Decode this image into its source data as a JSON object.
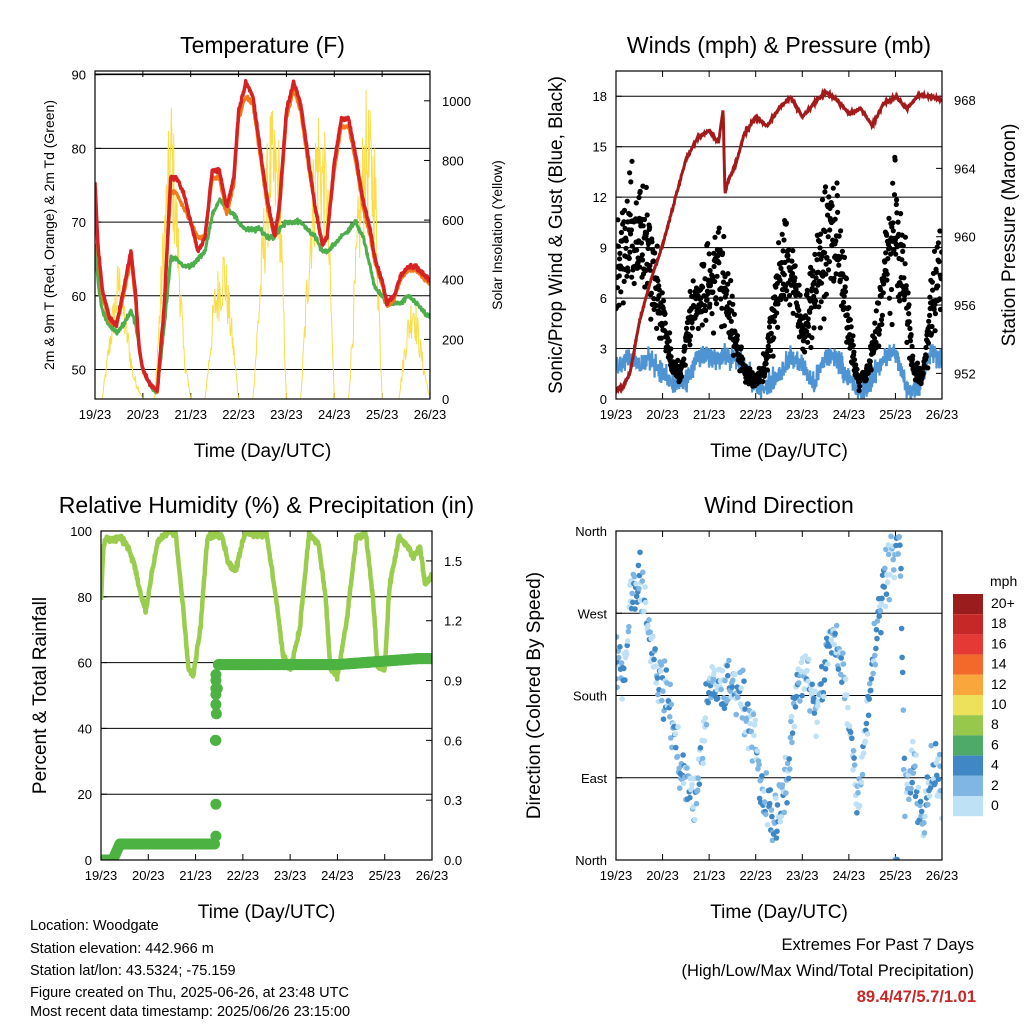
{
  "colors": {
    "temp_2m": "#d62222",
    "temp_9m": "#f07b1f",
    "dewpoint": "#4cae4c",
    "solar": "#f9dd4a",
    "wind": "#4f94d2",
    "gust": "#000000",
    "pressure": "#a31a1a",
    "rh": "#9acd4e",
    "rain": "#4cb342",
    "extremes": "#c62828"
  },
  "info": {
    "location": "Location: Woodgate",
    "elevation": "Station elevation: 442.966 m",
    "latlon": "Station lat/lon: 43.5324; -75.159",
    "created": "Figure created on Thu, 2025-06-26, at 23:48 UTC",
    "recent": "Most recent data timestamp: 2025/06/26 23:15:00"
  },
  "extremes": {
    "title": "Extremes For Past 7 Days",
    "subtitle": "(High/Low/Max Wind/Total Precipitation)",
    "values": "89.4/47/5.7/1.01"
  },
  "chart_data": [
    {
      "id": "temperature",
      "type": "line",
      "title": "Temperature (F)",
      "xlabel": "Time (Day/UTC)",
      "ylabel": "2m & 9m T (Red, Orange) & 2m Td (Green)",
      "y2label": "Solar Insolation (Yellow)",
      "xticks": [
        "19/23",
        "20/23",
        "21/23",
        "22/23",
        "23/23",
        "24/23",
        "25/23",
        "26/23"
      ],
      "xlim": [
        0,
        7
      ],
      "ylim": [
        46,
        90.5
      ],
      "yticks": [
        50,
        60,
        70,
        80,
        90
      ],
      "y2lim": [
        0,
        1100
      ],
      "y2ticks": [
        0,
        200,
        400,
        600,
        800,
        1000
      ],
      "grid": "horizontal",
      "series": [
        {
          "key": "temp_2m",
          "axis": "left",
          "x": [
            0,
            0.06,
            0.15,
            0.3,
            0.45,
            0.6,
            0.75,
            0.85,
            0.92,
            1.0,
            1.15,
            1.3,
            1.45,
            1.58,
            1.7,
            1.85,
            2.0,
            2.15,
            2.3,
            2.45,
            2.6,
            2.75,
            2.9,
            3.0,
            3.15,
            3.3,
            3.45,
            3.6,
            3.75,
            3.85,
            4.0,
            4.15,
            4.3,
            4.45,
            4.6,
            4.75,
            4.85,
            5.0,
            5.15,
            5.3,
            5.45,
            5.6,
            5.75,
            5.85,
            6.0,
            6.1,
            6.25,
            6.4,
            6.55,
            6.7,
            6.85,
            7.0
          ],
          "values": [
            75.5,
            67,
            61,
            57,
            56,
            61,
            66,
            60,
            53,
            50,
            48,
            47,
            59,
            76,
            76,
            74,
            70,
            66,
            68,
            77,
            77,
            72,
            76,
            85,
            89,
            87,
            80,
            73,
            68,
            72,
            85,
            89,
            86,
            79,
            72,
            67,
            68,
            78,
            84,
            84,
            79,
            73,
            69,
            65,
            62,
            59,
            60,
            63,
            64,
            64,
            63,
            62
          ]
        },
        {
          "key": "temp_9m",
          "axis": "left",
          "x": [
            0,
            0.06,
            0.15,
            0.3,
            0.45,
            0.6,
            0.75,
            0.85,
            0.92,
            1.0,
            1.15,
            1.3,
            1.45,
            1.58,
            1.7,
            1.85,
            2.0,
            2.15,
            2.3,
            2.45,
            2.6,
            2.75,
            2.9,
            3.0,
            3.15,
            3.3,
            3.45,
            3.6,
            3.75,
            3.85,
            4.0,
            4.15,
            4.3,
            4.45,
            4.6,
            4.75,
            4.85,
            5.0,
            5.15,
            5.3,
            5.45,
            5.6,
            5.75,
            5.85,
            6.0,
            6.1,
            6.25,
            6.4,
            6.55,
            6.7,
            6.85,
            7.0
          ],
          "values": [
            74.5,
            66,
            60,
            56.5,
            56,
            60,
            65,
            59,
            53,
            50,
            48,
            47,
            59,
            74,
            74,
            72,
            70,
            68,
            68,
            76,
            76,
            71,
            75,
            84,
            87,
            86,
            79,
            72,
            68,
            71,
            84,
            88,
            85,
            78,
            72,
            67,
            68,
            77,
            83,
            83,
            78,
            72,
            68,
            64.5,
            61.5,
            58.5,
            59.5,
            62.5,
            63.5,
            63.5,
            62.5,
            61.5
          ]
        },
        {
          "key": "dewpoint",
          "axis": "left",
          "x": [
            0,
            0.06,
            0.15,
            0.3,
            0.45,
            0.6,
            0.75,
            0.85,
            0.92,
            1.0,
            1.15,
            1.3,
            1.45,
            1.58,
            1.7,
            1.85,
            2.0,
            2.15,
            2.3,
            2.45,
            2.6,
            2.75,
            2.9,
            3.0,
            3.15,
            3.3,
            3.45,
            3.6,
            3.75,
            3.85,
            4.0,
            4.15,
            4.3,
            4.45,
            4.6,
            4.75,
            4.85,
            5.0,
            5.15,
            5.3,
            5.45,
            5.6,
            5.75,
            5.85,
            6.0,
            6.1,
            6.25,
            6.4,
            6.55,
            6.7,
            6.85,
            7.0
          ],
          "values": [
            67,
            62,
            58,
            56,
            55,
            56,
            58,
            56,
            53,
            50,
            48,
            47,
            56,
            65,
            65,
            64,
            64,
            65,
            66,
            71,
            73,
            72,
            71,
            70,
            69,
            69,
            69,
            68,
            68,
            69,
            70,
            70,
            70,
            69,
            68,
            66,
            66,
            67,
            68,
            69,
            70,
            68,
            64,
            61,
            60,
            59,
            59,
            59,
            60,
            59,
            58,
            57
          ]
        },
        {
          "key": "solar",
          "axis": "right",
          "x": [
            0,
            0.15,
            0.35,
            0.5,
            0.65,
            0.8,
            1.0,
            1.25,
            1.45,
            1.6,
            1.75,
            1.85,
            2.0,
            2.3,
            2.5,
            2.7,
            2.9,
            3.0,
            3.3,
            3.5,
            3.65,
            3.85,
            4.0,
            4.3,
            4.5,
            4.65,
            4.85,
            5.0,
            5.3,
            5.5,
            5.65,
            5.85,
            6.0,
            6.35,
            6.5,
            6.65,
            6.85,
            7.0
          ],
          "values": [
            0,
            0,
            300,
            500,
            300,
            100,
            0,
            0,
            700,
            1050,
            600,
            200,
            0,
            0,
            400,
            550,
            200,
            0,
            0,
            600,
            1000,
            900,
            0,
            0,
            700,
            1050,
            850,
            0,
            0,
            700,
            1050,
            900,
            0,
            0,
            250,
            400,
            150,
            0
          ]
        }
      ]
    },
    {
      "id": "winds",
      "type": "scatter",
      "title": "Winds (mph) & Pressure (mb)",
      "xlabel": "Time (Day/UTC)",
      "ylabel": "Sonic/Prop Wind & Gust (Blue, Black)",
      "y2label": "Station Pressure (Maroon)",
      "xticks": [
        "19/23",
        "20/23",
        "21/23",
        "22/23",
        "23/23",
        "24/23",
        "25/23",
        "26/23"
      ],
      "xlim": [
        0,
        7
      ],
      "ylim": [
        0,
        19.5
      ],
      "yticks": [
        0,
        3,
        6,
        9,
        12,
        15,
        18
      ],
      "y2lim": [
        950.5,
        969.7
      ],
      "y2ticks": [
        952,
        956,
        960,
        964,
        968
      ],
      "grid": "horizontal",
      "series": [
        {
          "key": "wind",
          "axis": "left",
          "x": [
            0,
            0.25,
            0.5,
            0.75,
            1.0,
            1.25,
            1.5,
            1.75,
            2.0,
            2.25,
            2.5,
            2.75,
            3.0,
            3.25,
            3.5,
            3.75,
            4.0,
            4.25,
            4.5,
            4.75,
            5.0,
            5.25,
            5.5,
            5.75,
            6.0,
            6.25,
            6.5,
            6.75,
            7.0
          ],
          "values": [
            2,
            2.5,
            2,
            2.5,
            1.5,
            0.8,
            1.0,
            2.5,
            2.5,
            2.5,
            2.5,
            2.0,
            0.8,
            0.8,
            1.5,
            2.5,
            2.0,
            0.8,
            2.5,
            2.5,
            1.2,
            0.3,
            1.2,
            2.5,
            2.8,
            0.5,
            0.8,
            2.8,
            2.5
          ]
        },
        {
          "key": "gust",
          "axis": "left",
          "x": [
            0,
            0.2,
            0.4,
            0.6,
            0.8,
            1.0,
            1.2,
            1.4,
            1.6,
            1.8,
            2.0,
            2.2,
            2.4,
            2.6,
            2.8,
            3.0,
            3.2,
            3.4,
            3.6,
            3.8,
            4.0,
            4.2,
            4.4,
            4.6,
            4.8,
            5.0,
            5.2,
            5.4,
            5.6,
            5.8,
            6.0,
            6.2,
            6.4,
            6.6,
            6.8,
            7.0
          ],
          "values": [
            7,
            9,
            10,
            9,
            8,
            5,
            2,
            1.5,
            5,
            6,
            7,
            8,
            6,
            3,
            1.5,
            1,
            2,
            5,
            9,
            7,
            4,
            6,
            8,
            10,
            9,
            4,
            1,
            1.5,
            4,
            8,
            10,
            7,
            1.5,
            1.5,
            6,
            8
          ]
        },
        {
          "key": "pressure",
          "axis": "right",
          "x": [
            0,
            0.15,
            0.3,
            0.5,
            0.75,
            1.0,
            1.25,
            1.5,
            1.75,
            2.0,
            2.2,
            2.3,
            2.34,
            2.4,
            2.5,
            2.6,
            2.75,
            3.0,
            3.25,
            3.5,
            3.75,
            4.0,
            4.25,
            4.5,
            4.75,
            5.0,
            5.25,
            5.5,
            5.75,
            6.0,
            6.25,
            6.5,
            6.75,
            7.0
          ],
          "values": [
            951,
            951.2,
            952,
            955,
            957.5,
            959.5,
            962,
            964.5,
            965.8,
            966.2,
            965.5,
            967.5,
            962.5,
            963.2,
            963.8,
            964.5,
            966,
            967,
            966.5,
            967.5,
            968.2,
            967,
            967.8,
            968.5,
            968,
            967.2,
            967.5,
            966.5,
            967.8,
            968.2,
            967.5,
            968.3,
            968.2,
            968
          ]
        }
      ]
    },
    {
      "id": "humidity",
      "type": "line",
      "title": "Relative Humidity (%) & Precipitation (in)",
      "xlabel": "Time (Day/UTC)",
      "ylabel": "Percent & Total Rainfall",
      "xticks": [
        "19/23",
        "20/23",
        "21/23",
        "22/23",
        "23/23",
        "24/23",
        "25/23",
        "26/23"
      ],
      "xlim": [
        0,
        7
      ],
      "ylim": [
        0,
        100
      ],
      "yticks": [
        0,
        20,
        40,
        60,
        80,
        100
      ],
      "y2lim": [
        0,
        1.65
      ],
      "y2ticks": [
        "0.0",
        "0.3",
        "0.6",
        "0.9",
        "1.2",
        "1.5"
      ],
      "grid": "horizontal",
      "series": [
        {
          "key": "rh",
          "axis": "left",
          "x": [
            0,
            0.05,
            0.1,
            0.2,
            0.4,
            0.55,
            0.7,
            0.85,
            0.95,
            1.05,
            1.2,
            1.45,
            1.58,
            1.75,
            1.85,
            1.95,
            2.1,
            2.25,
            2.4,
            2.55,
            2.7,
            2.85,
            2.95,
            3.05,
            3.3,
            3.5,
            3.7,
            3.85,
            4.0,
            4.2,
            4.4,
            4.6,
            4.75,
            4.85,
            5.0,
            5.2,
            5.4,
            5.6,
            5.75,
            5.85,
            6.0,
            6.1,
            6.3,
            6.5,
            6.6,
            6.75,
            6.85,
            7.0
          ],
          "values": [
            79,
            95,
            98,
            97,
            98,
            96,
            90,
            80,
            76,
            85,
            97,
            100,
            99,
            75,
            58,
            56,
            70,
            98,
            99,
            99,
            90,
            88,
            94,
            100,
            99,
            99,
            80,
            62,
            58,
            70,
            99,
            96,
            80,
            58,
            56,
            73,
            98,
            99,
            80,
            59,
            58,
            83,
            98,
            95,
            92,
            95,
            84,
            86
          ]
        },
        {
          "key": "rain",
          "axis": "right",
          "x": [
            0,
            0.25,
            0.4,
            1.5,
            2.0,
            2.4,
            2.42,
            2.45,
            2.48,
            2.5,
            3.0,
            5.0,
            6.7,
            7.0
          ],
          "values": [
            0,
            0,
            0.08,
            0.08,
            0.08,
            0.08,
            0.6,
            0.8,
            0.98,
            0.98,
            0.98,
            0.98,
            1.01,
            1.01
          ]
        }
      ]
    },
    {
      "id": "direction",
      "type": "scatter",
      "title": "Wind Direction",
      "xlabel": "Time (Day/UTC)",
      "ylabel": "Direction (Colored By Speed)",
      "xticks": [
        "19/23",
        "20/23",
        "21/23",
        "22/23",
        "23/23",
        "24/23",
        "25/23",
        "26/23"
      ],
      "xlim": [
        0,
        7
      ],
      "ylim": [
        0,
        360
      ],
      "ytick_values": [
        0,
        90,
        180,
        270,
        360
      ],
      "ytick_labels": [
        "North",
        "East",
        "South",
        "West",
        "North"
      ],
      "grid": "horizontal",
      "legend": {
        "title": "mph",
        "labels": [
          "20+",
          "18",
          "16",
          "14",
          "12",
          "10",
          "8",
          "6",
          "4",
          "2",
          "0"
        ],
        "colors": [
          "#9b1c1c",
          "#c62828",
          "#e53935",
          "#f26a2a",
          "#f9a63d",
          "#ede05b",
          "#98c84b",
          "#4daa68",
          "#3f88c5",
          "#7fb6e3",
          "#bfe1f6"
        ],
        "placement": "right"
      },
      "series": [
        {
          "name": "",
          "x": [
            0,
            0.2,
            0.3,
            0.5,
            0.7,
            0.9,
            1.1,
            1.4,
            1.7,
            2.0,
            2.3,
            2.6,
            2.9,
            3.1,
            3.4,
            3.7,
            3.9,
            4.1,
            4.3,
            4.6,
            4.9,
            5.2,
            5.5,
            5.8,
            6.1,
            6.2,
            6.4,
            6.6,
            6.8,
            6.95
          ],
          "values": [
            210,
            220,
            280,
            320,
            250,
            200,
            180,
            100,
            60,
            185,
            190,
            190,
            150,
            80,
            40,
            100,
            200,
            210,
            150,
            250,
            200,
            60,
            220,
            320,
            350,
            70,
            100,
            40,
            100,
            80
          ]
        }
      ]
    }
  ]
}
